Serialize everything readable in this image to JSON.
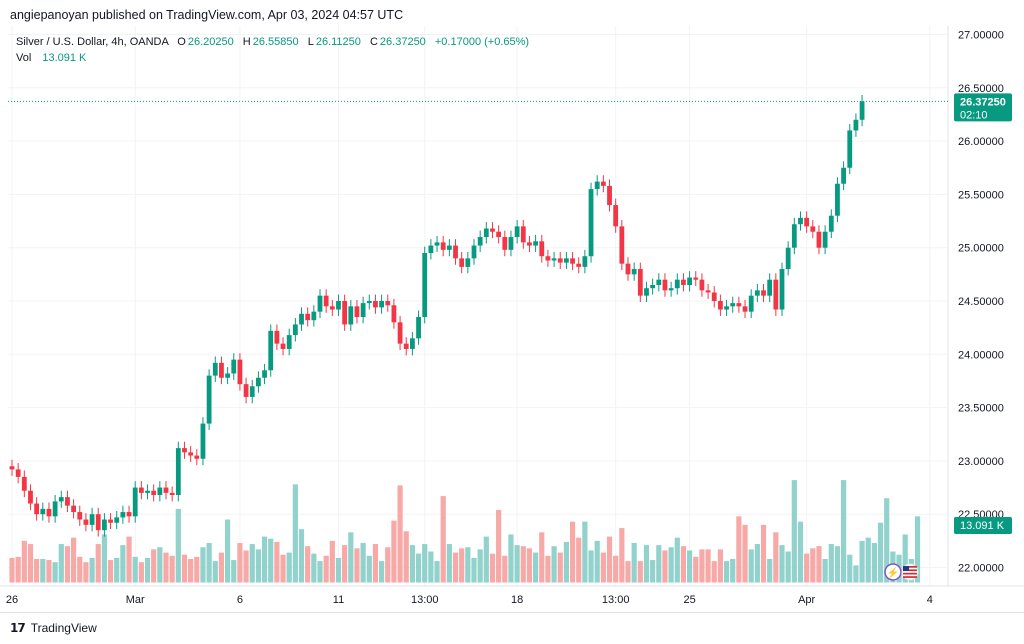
{
  "header": {
    "published_text": "angiepanoyan published on TradingView.com, Apr 03, 2024 04:57 UTC"
  },
  "legend": {
    "symbol": "Silver / U.S. Dollar, 4h, OANDA",
    "o_label": "O",
    "o_value": "26.20250",
    "h_label": "H",
    "h_value": "26.55850",
    "l_label": "L",
    "l_value": "26.11250",
    "c_label": "C",
    "c_value": "26.37250",
    "change": "+0.17000 (+0.65%)",
    "vol_label": "Vol",
    "vol_value": "13.091 K"
  },
  "price_tag": {
    "price": "26.37250",
    "countdown": "02:10"
  },
  "vol_tag": {
    "value": "13.091 K"
  },
  "footer": {
    "brand": "TradingView"
  },
  "colors": {
    "up": "#089981",
    "down": "#f23645",
    "vol_up": "#92d2cc",
    "vol_down": "#f7a9a7"
  },
  "chart_data": {
    "type": "candlestick",
    "price_axis": {
      "min": 22.0,
      "max": 27.0,
      "ticks": [
        "22.00000",
        "22.50000",
        "23.00000",
        "23.50000",
        "24.00000",
        "24.50000",
        "25.00000",
        "25.50000",
        "26.00000",
        "26.50000",
        "27.00000"
      ]
    },
    "x_labels": [
      "26",
      "Mar",
      "6",
      "11",
      "13:00",
      "18",
      "13:00",
      "25",
      "Apr",
      "4"
    ],
    "x_label_index": [
      0,
      20,
      37,
      53,
      67,
      82,
      98,
      110,
      129,
      149
    ],
    "last_price": 26.3725,
    "candles": [
      [
        22.95,
        22.92
      ],
      [
        22.92,
        22.85
      ],
      [
        22.85,
        22.72
      ],
      [
        22.72,
        22.6
      ],
      [
        22.6,
        22.5
      ],
      [
        22.5,
        22.55
      ],
      [
        22.55,
        22.48
      ],
      [
        22.48,
        22.62
      ],
      [
        22.62,
        22.66
      ],
      [
        22.66,
        22.58
      ],
      [
        22.58,
        22.52
      ],
      [
        22.52,
        22.45
      ],
      [
        22.45,
        22.4
      ],
      [
        22.4,
        22.5
      ],
      [
        22.5,
        22.35
      ],
      [
        22.35,
        22.45
      ],
      [
        22.45,
        22.42
      ],
      [
        22.42,
        22.47
      ],
      [
        22.47,
        22.52
      ],
      [
        22.52,
        22.48
      ],
      [
        22.48,
        22.75
      ],
      [
        22.75,
        22.7
      ],
      [
        22.7,
        22.72
      ],
      [
        22.72,
        22.68
      ],
      [
        22.68,
        22.75
      ],
      [
        22.75,
        22.7
      ],
      [
        22.7,
        22.68
      ],
      [
        22.68,
        23.12
      ],
      [
        23.12,
        23.08
      ],
      [
        23.08,
        23.05
      ],
      [
        23.05,
        23.02
      ],
      [
        23.02,
        23.35
      ],
      [
        23.35,
        23.8
      ],
      [
        23.8,
        23.92
      ],
      [
        23.92,
        23.78
      ],
      [
        23.78,
        23.82
      ],
      [
        23.82,
        23.95
      ],
      [
        23.95,
        23.72
      ],
      [
        23.72,
        23.6
      ],
      [
        23.6,
        23.7
      ],
      [
        23.7,
        23.78
      ],
      [
        23.78,
        23.85
      ],
      [
        23.85,
        24.22
      ],
      [
        24.22,
        24.1
      ],
      [
        24.1,
        24.05
      ],
      [
        24.05,
        24.18
      ],
      [
        24.18,
        24.28
      ],
      [
        24.28,
        24.38
      ],
      [
        24.38,
        24.32
      ],
      [
        24.32,
        24.4
      ],
      [
        24.4,
        24.55
      ],
      [
        24.55,
        24.45
      ],
      [
        24.45,
        24.42
      ],
      [
        24.42,
        24.5
      ],
      [
        24.5,
        24.28
      ],
      [
        24.28,
        24.45
      ],
      [
        24.45,
        24.35
      ],
      [
        24.35,
        24.48
      ],
      [
        24.48,
        24.5
      ],
      [
        24.5,
        24.44
      ],
      [
        24.44,
        24.5
      ],
      [
        24.5,
        24.46
      ],
      [
        24.46,
        24.3
      ],
      [
        24.3,
        24.1
      ],
      [
        24.1,
        24.05
      ],
      [
        24.05,
        24.15
      ],
      [
        24.15,
        24.35
      ],
      [
        24.35,
        24.95
      ],
      [
        24.95,
        25.02
      ],
      [
        25.02,
        25.05
      ],
      [
        25.05,
        24.98
      ],
      [
        24.98,
        25.02
      ],
      [
        25.02,
        24.9
      ],
      [
        24.9,
        24.82
      ],
      [
        24.82,
        24.9
      ],
      [
        24.9,
        25.02
      ],
      [
        25.02,
        25.1
      ],
      [
        25.1,
        25.18
      ],
      [
        25.18,
        25.15
      ],
      [
        25.15,
        25.1
      ],
      [
        25.1,
        24.98
      ],
      [
        24.98,
        25.1
      ],
      [
        25.1,
        25.2
      ],
      [
        25.2,
        25.05
      ],
      [
        25.05,
        25.02
      ],
      [
        25.02,
        25.06
      ],
      [
        25.06,
        24.92
      ],
      [
        24.92,
        24.88
      ],
      [
        24.88,
        24.9
      ],
      [
        24.9,
        24.86
      ],
      [
        24.86,
        24.9
      ],
      [
        24.9,
        24.85
      ],
      [
        24.85,
        24.82
      ],
      [
        24.82,
        24.92
      ],
      [
        24.92,
        25.55
      ],
      [
        25.55,
        25.62
      ],
      [
        25.62,
        25.58
      ],
      [
        25.58,
        25.4
      ],
      [
        25.4,
        25.2
      ],
      [
        25.2,
        24.85
      ],
      [
        24.85,
        24.75
      ],
      [
        24.75,
        24.8
      ],
      [
        24.8,
        24.55
      ],
      [
        24.55,
        24.62
      ],
      [
        24.62,
        24.65
      ],
      [
        24.65,
        24.7
      ],
      [
        24.7,
        24.6
      ],
      [
        24.6,
        24.62
      ],
      [
        24.62,
        24.7
      ],
      [
        24.7,
        24.65
      ],
      [
        24.65,
        24.72
      ],
      [
        24.72,
        24.7
      ],
      [
        24.7,
        24.6
      ],
      [
        24.6,
        24.58
      ],
      [
        24.58,
        24.5
      ],
      [
        24.5,
        24.42
      ],
      [
        24.42,
        24.45
      ],
      [
        24.45,
        24.48
      ],
      [
        24.48,
        24.45
      ],
      [
        24.45,
        24.4
      ],
      [
        24.4,
        24.55
      ],
      [
        24.55,
        24.6
      ],
      [
        24.6,
        24.55
      ],
      [
        24.55,
        24.7
      ],
      [
        24.7,
        24.42
      ],
      [
        24.42,
        24.8
      ],
      [
        24.8,
        25.0
      ],
      [
        25.0,
        25.22
      ],
      [
        25.22,
        25.28
      ],
      [
        25.28,
        25.2
      ],
      [
        25.2,
        25.15
      ],
      [
        25.15,
        25.0
      ],
      [
        25.0,
        25.15
      ],
      [
        25.15,
        25.3
      ],
      [
        25.3,
        25.6
      ],
      [
        25.6,
        25.75
      ],
      [
        25.75,
        26.1
      ],
      [
        26.1,
        26.2
      ],
      [
        26.2,
        26.3725
      ]
    ],
    "volume": [
      22.09,
      22.1,
      22.25,
      22.22,
      22.08,
      22.08,
      22.07,
      22.05,
      22.22,
      22.2,
      22.28,
      22.1,
      22.05,
      22.09,
      22.22,
      22.31,
      22.07,
      22.09,
      22.21,
      22.29,
      22.1,
      22.05,
      22.09,
      22.17,
      22.19,
      22.14,
      22.11,
      22.55,
      22.12,
      22.08,
      22.1,
      22.19,
      22.23,
      22.06,
      22.14,
      22.45,
      22.07,
      22.23,
      22.16,
      22.22,
      22.17,
      22.29,
      22.27,
      22.24,
      22.12,
      22.14,
      22.78,
      22.36,
      22.2,
      22.13,
      22.06,
      22.11,
      22.25,
      22.09,
      22.21,
      22.33,
      22.18,
      22.23,
      22.11,
      22.22,
      22.06,
      22.19,
      22.44,
      22.77,
      22.34,
      22.21,
      22.13,
      22.22,
      22.15,
      22.06,
      22.67,
      22.22,
      22.14,
      22.18,
      22.19,
      22.09,
      22.17,
      22.29,
      22.13,
      22.54,
      22.11,
      22.31,
      22.21,
      22.2,
      22.18,
      22.14,
      22.33,
      22.11,
      22.2,
      22.14,
      22.24,
      22.43,
      22.28,
      22.43,
      22.16,
      22.25,
      22.14,
      22.29,
      22.11,
      22.37,
      22.06,
      22.23,
      22.06,
      22.21,
      22.07,
      22.21,
      22.16,
      22.19,
      22.28,
      22.2,
      22.16,
      22.1,
      22.17,
      22.17,
      22.06,
      22.17,
      22.06,
      22.08,
      22.48,
      22.4,
      22.17,
      22.22,
      22.4,
      22.08,
      22.33,
      22.21,
      22.15,
      22.82,
      22.43,
      22.13,
      22.18,
      22.2,
      22.08,
      22.22,
      22.2,
      22.82,
      22.12,
      22.02,
      22.25,
      22.28,
      22.23,
      22.42,
      22.65,
      22.15,
      22.12,
      22.31,
      22.08,
      22.48
    ]
  }
}
